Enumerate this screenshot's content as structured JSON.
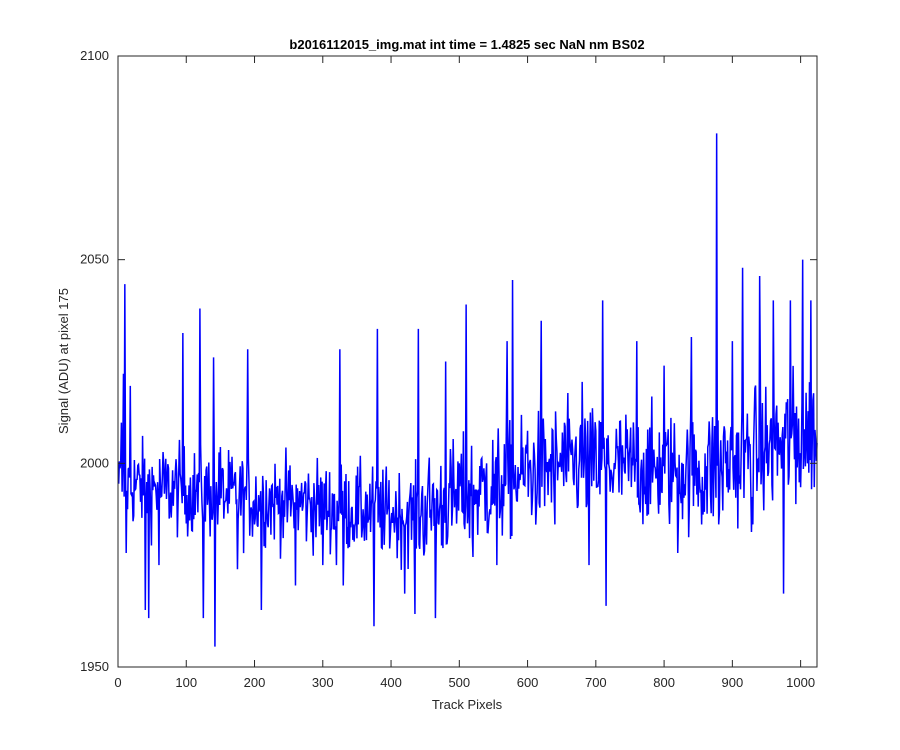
{
  "chart_data": {
    "type": "line",
    "title": "b2016112015_img.mat int time = 1.4825 sec  NaN nm BS02",
    "xlabel": "Track Pixels",
    "ylabel": "Signal (ADU) at pixel 175",
    "xlim": [
      0,
      1024
    ],
    "ylim": [
      1950,
      2100
    ],
    "xticks": [
      0,
      100,
      200,
      300,
      400,
      500,
      600,
      700,
      800,
      900,
      1000
    ],
    "yticks": [
      1950,
      2000,
      2050,
      2100
    ],
    "grid": false,
    "legend": "none",
    "series": [
      {
        "color": "#0000ff",
        "x_start": 1,
        "x_step": 1,
        "count": 1024,
        "keypoints": [
          [
            1,
            1995
          ],
          [
            5,
            2010
          ],
          [
            8,
            2022
          ],
          [
            10,
            2044
          ],
          [
            12,
            1978
          ],
          [
            18,
            2019
          ],
          [
            40,
            1964
          ],
          [
            45,
            1962
          ],
          [
            60,
            1975
          ],
          [
            95,
            2032
          ],
          [
            120,
            2038
          ],
          [
            125,
            1962
          ],
          [
            140,
            2026
          ],
          [
            142,
            1955
          ],
          [
            150,
            2004
          ],
          [
            175,
            1974
          ],
          [
            190,
            2028
          ],
          [
            200,
            1985
          ],
          [
            210,
            1964
          ],
          [
            240,
            1992
          ],
          [
            260,
            1970
          ],
          [
            275,
            1995
          ],
          [
            300,
            1975
          ],
          [
            320,
            1975
          ],
          [
            325,
            2028
          ],
          [
            330,
            1970
          ],
          [
            345,
            1985
          ],
          [
            375,
            1960
          ],
          [
            380,
            2033
          ],
          [
            390,
            1980
          ],
          [
            420,
            1968
          ],
          [
            435,
            1963
          ],
          [
            440,
            2033
          ],
          [
            460,
            1990
          ],
          [
            465,
            1962
          ],
          [
            470,
            1985
          ],
          [
            480,
            2025
          ],
          [
            500,
            2000
          ],
          [
            510,
            2039
          ],
          [
            520,
            1977
          ],
          [
            540,
            2000
          ],
          [
            555,
            1975
          ],
          [
            570,
            2030
          ],
          [
            578,
            2045
          ],
          [
            590,
            1998
          ],
          [
            600,
            2008
          ],
          [
            620,
            2035
          ],
          [
            640,
            1985
          ],
          [
            660,
            1998
          ],
          [
            680,
            2020
          ],
          [
            690,
            1975
          ],
          [
            700,
            2008
          ],
          [
            710,
            2040
          ],
          [
            715,
            1965
          ],
          [
            740,
            2000
          ],
          [
            760,
            2030
          ],
          [
            780,
            1990
          ],
          [
            800,
            2024
          ],
          [
            820,
            1978
          ],
          [
            840,
            2031
          ],
          [
            855,
            1985
          ],
          [
            870,
            2005
          ],
          [
            877,
            2081
          ],
          [
            880,
            1985
          ],
          [
            890,
            2000
          ],
          [
            900,
            2030
          ],
          [
            910,
            1995
          ],
          [
            915,
            2048
          ],
          [
            930,
            1985
          ],
          [
            940,
            2046
          ],
          [
            950,
            2000
          ],
          [
            960,
            2040
          ],
          [
            975,
            1968
          ],
          [
            985,
            2040
          ],
          [
            993,
            1990
          ],
          [
            1003,
            2050
          ],
          [
            1010,
            2000
          ],
          [
            1015,
            2040
          ],
          [
            1024,
            2005
          ]
        ]
      }
    ]
  }
}
